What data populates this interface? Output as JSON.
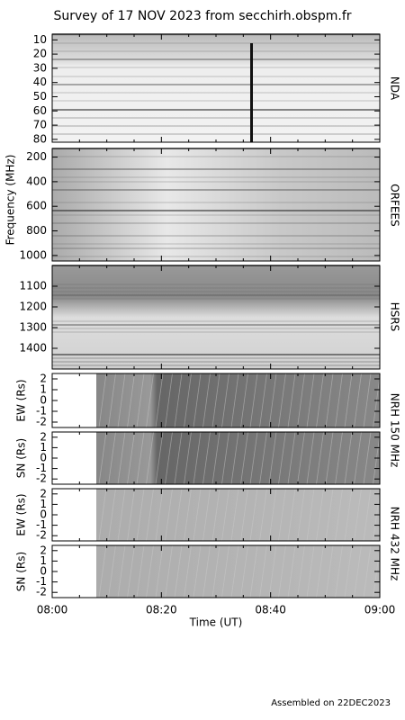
{
  "chart_data": {
    "type": "heatmap",
    "title": "Survey of 17 NOV 2023 from secchirh.obspm.fr",
    "freq_label": "Frequency (MHz)",
    "xlabel": "Time (UT)",
    "xticks": [
      "08:00",
      "08:20",
      "08:40",
      "09:00"
    ],
    "footer": "Assembled on 22DEC2023",
    "panels": [
      {
        "right_label": "NDA",
        "ylim": [
          82,
          6
        ],
        "yticks": [
          10,
          20,
          30,
          40,
          50,
          60,
          70,
          80
        ]
      },
      {
        "right_label": "ORFEES",
        "ylim": [
          1045,
          130
        ],
        "yticks": [
          200,
          400,
          600,
          800,
          1000
        ]
      },
      {
        "right_label": "HSRS",
        "ylim": [
          1500,
          1000
        ],
        "yticks": [
          1100,
          1200,
          1300,
          1400
        ]
      },
      {
        "ylabel": "EW (Rs)",
        "right_label": "NRH 150 MHz",
        "ylim": [
          -2.5,
          2.5
        ],
        "yticks": [
          -2,
          -1,
          0,
          1,
          2
        ]
      },
      {
        "ylabel": "SN (Rs)",
        "ylim": [
          -2.5,
          2.5
        ],
        "yticks": [
          -2,
          -1,
          0,
          1,
          2
        ]
      },
      {
        "ylabel": "EW (Rs)",
        "right_label": "NRH 432 MHz",
        "ylim": [
          -2.5,
          2.5
        ],
        "yticks": [
          -2,
          -1,
          0,
          1,
          2
        ]
      },
      {
        "ylabel": "SN (Rs)",
        "ylim": [
          -2.5,
          2.5
        ],
        "yticks": [
          -2,
          -1,
          0,
          1,
          2
        ]
      }
    ]
  }
}
